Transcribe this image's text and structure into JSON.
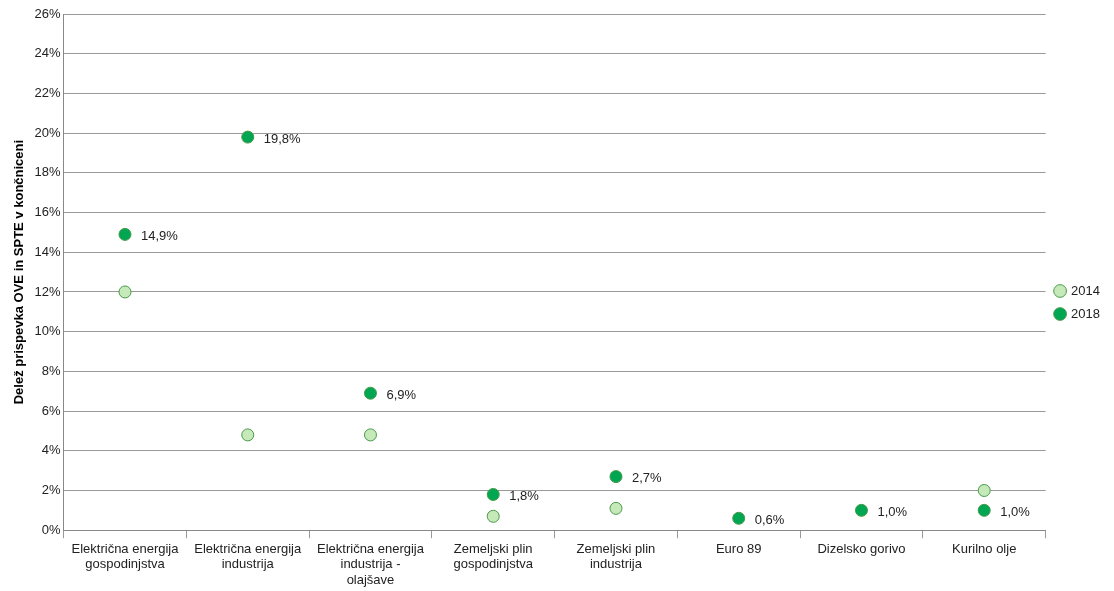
{
  "chart_data": {
    "type": "scatter",
    "ylabel": "Delež prispevka OVE in SPTE v končniceni",
    "categories": [
      "Električna energija gospodinjstva",
      "Električna energija industrija",
      "Električna energija industrija - olajšave",
      "Zemeljski plin gospodinjstva",
      "Zemeljski plin industrija",
      "Euro 89",
      "Dizelsko gorivo",
      "Kurilno olje"
    ],
    "series": [
      {
        "name": "2014",
        "color": "#c6e9b9",
        "values": [
          12.0,
          4.8,
          4.8,
          0.7,
          1.1,
          null,
          null,
          2.0
        ]
      },
      {
        "name": "2018",
        "color": "#00a651",
        "values": [
          14.9,
          19.8,
          6.9,
          1.8,
          2.7,
          0.6,
          1.0,
          1.0
        ],
        "value_labels": [
          "14,9%",
          "19,8%",
          "6,9%",
          "1,8%",
          "2,7%",
          "0,6%",
          "1,0%",
          "1,0%"
        ]
      }
    ],
    "ylim": [
      0,
      26
    ],
    "yticks": [
      {
        "value": 0,
        "label": "0%"
      },
      {
        "value": 2,
        "label": "2%"
      },
      {
        "value": 4,
        "label": "4%"
      },
      {
        "value": 6,
        "label": "6%"
      },
      {
        "value": 8,
        "label": "8%"
      },
      {
        "value": 10,
        "label": "10%"
      },
      {
        "value": 12,
        "label": "12%"
      },
      {
        "value": 14,
        "label": "14%"
      },
      {
        "value": 16,
        "label": "16%"
      },
      {
        "value": 18,
        "label": "18%"
      },
      {
        "value": 20,
        "label": "20%"
      },
      {
        "value": 22,
        "label": "22%"
      },
      {
        "value": 24,
        "label": "24%"
      },
      {
        "value": 26,
        "label": "26%"
      }
    ],
    "grid": "y",
    "legend": "right",
    "marker": "circle"
  }
}
